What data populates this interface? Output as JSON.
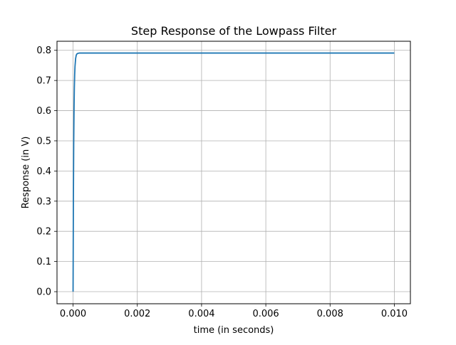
{
  "chart_data": {
    "type": "line",
    "title": "Step Response of the Lowpass Filter",
    "xlabel": "time (in seconds)",
    "ylabel": "Response (in V)",
    "xlim": [
      -0.0005,
      0.0105
    ],
    "ylim": [
      -0.04,
      0.83
    ],
    "xticks": [
      0.0,
      0.002,
      0.004,
      0.006,
      0.008,
      0.01
    ],
    "xtick_labels": [
      "0.000",
      "0.002",
      "0.004",
      "0.006",
      "0.008",
      "0.010"
    ],
    "yticks": [
      0.0,
      0.1,
      0.2,
      0.3,
      0.4,
      0.5,
      0.6,
      0.7,
      0.8
    ],
    "ytick_labels": [
      "0.0",
      "0.1",
      "0.2",
      "0.3",
      "0.4",
      "0.5",
      "0.6",
      "0.7",
      "0.8"
    ],
    "grid": true,
    "series": [
      {
        "color": "#1f77b4",
        "x": [
          0.0,
          1e-05,
          2e-05,
          3e-05,
          4e-05,
          5e-05,
          6e-05,
          8e-05,
          0.0001,
          0.00012,
          0.00015,
          0.0002,
          0.0003,
          0.0005,
          0.001,
          0.002,
          0.004,
          0.006,
          0.008,
          0.01
        ],
        "values": [
          0.0,
          0.302,
          0.489,
          0.604,
          0.675,
          0.719,
          0.746,
          0.773,
          0.784,
          0.788,
          0.79,
          0.791,
          0.791,
          0.791,
          0.791,
          0.791,
          0.791,
          0.791,
          0.791,
          0.791
        ]
      }
    ]
  }
}
